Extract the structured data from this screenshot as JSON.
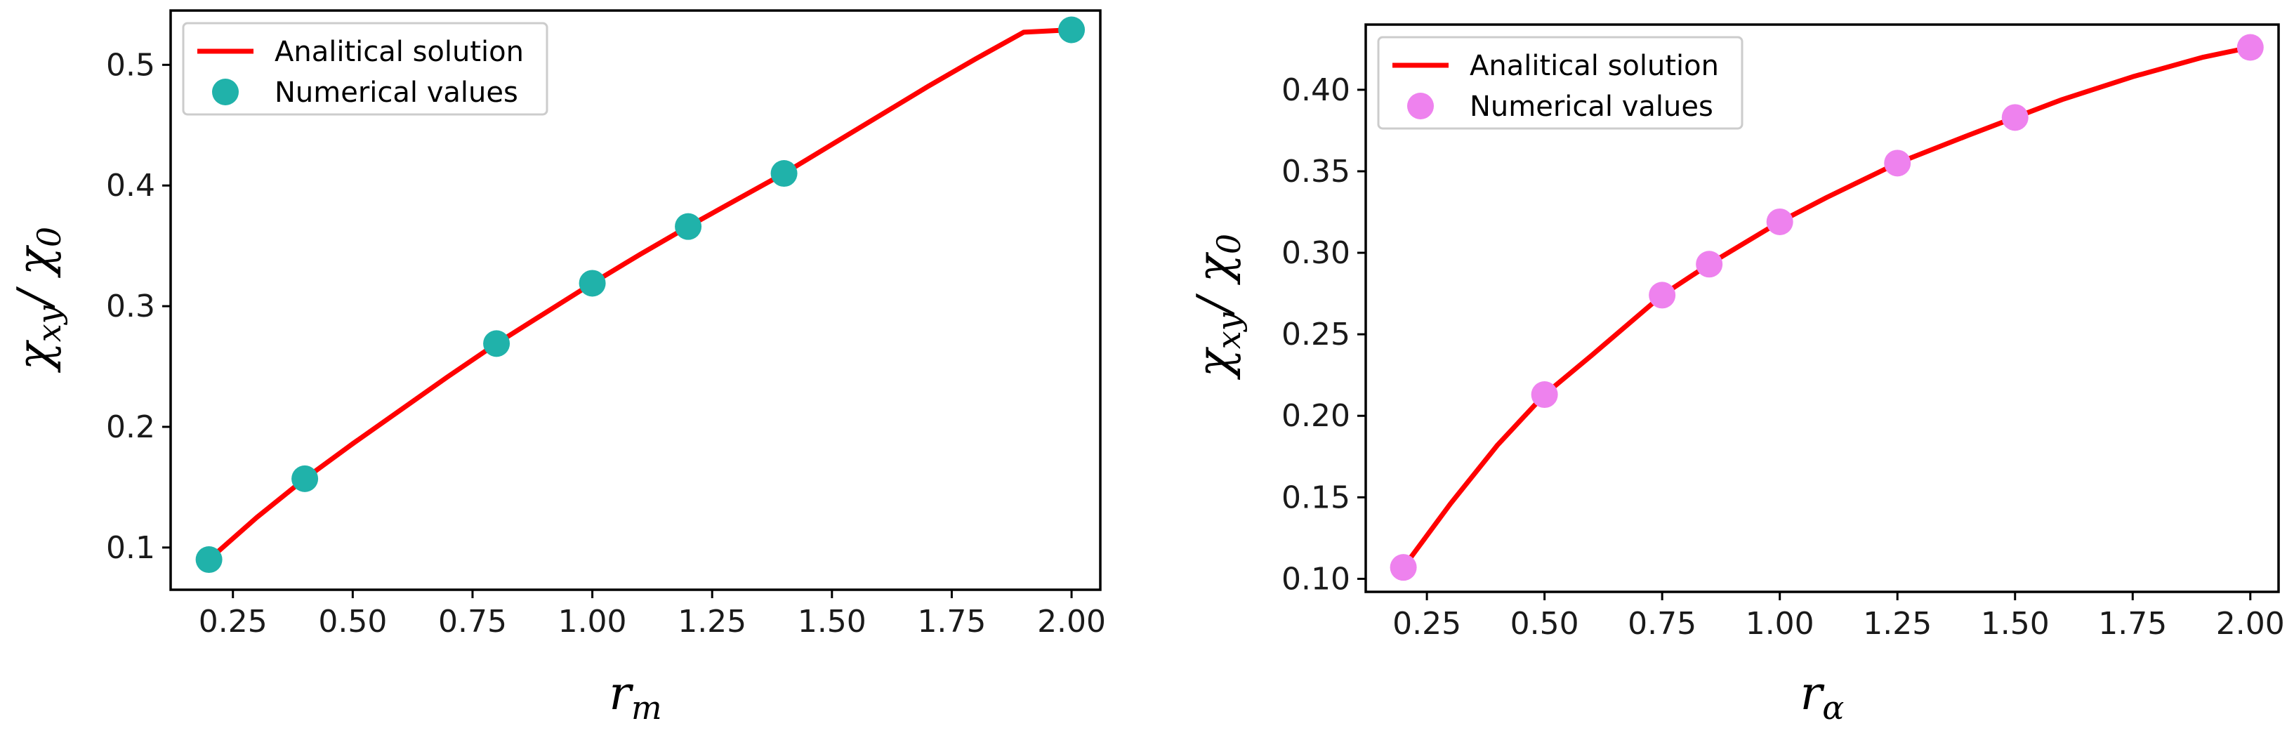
{
  "chart_data": [
    {
      "type": "line+scatter",
      "xlabel": "r_m",
      "ylabel": "χ_xy / χ_0",
      "xlim": [
        0.12,
        2.06
      ],
      "ylim": [
        0.065,
        0.545
      ],
      "xticks": [
        0.25,
        0.5,
        0.75,
        1.0,
        1.25,
        1.5,
        1.75,
        2.0
      ],
      "xtick_labels": [
        "0.25",
        "0.50",
        "0.75",
        "1.00",
        "1.25",
        "1.50",
        "1.75",
        "2.00"
      ],
      "yticks": [
        0.1,
        0.2,
        0.3,
        0.4,
        0.5
      ],
      "ytick_labels": [
        "0.1",
        "0.2",
        "0.3",
        "0.4",
        "0.5"
      ],
      "legend_position": "top-left",
      "series": [
        {
          "name": "Analitical solution",
          "kind": "line",
          "color": "#ff0000",
          "x": [
            0.2,
            0.3,
            0.4,
            0.5,
            0.6,
            0.7,
            0.8,
            0.9,
            1.0,
            1.1,
            1.2,
            1.3,
            1.4,
            1.5,
            1.6,
            1.7,
            1.8,
            1.9,
            2.0
          ],
          "y": [
            0.09,
            0.125,
            0.157,
            0.186,
            0.214,
            0.242,
            0.269,
            0.294,
            0.319,
            0.343,
            0.366,
            0.388,
            0.41,
            0.434,
            0.458,
            0.482,
            0.505,
            0.527,
            0.529
          ]
        },
        {
          "name": "Numerical values",
          "kind": "scatter",
          "color": "#20b2aa",
          "x": [
            0.2,
            0.4,
            0.8,
            1.0,
            1.2,
            1.4,
            2.0
          ],
          "y": [
            0.09,
            0.157,
            0.269,
            0.319,
            0.366,
            0.41,
            0.529
          ]
        }
      ]
    },
    {
      "type": "line+scatter",
      "xlabel": "r_α",
      "ylabel": "χ_xy / χ_0",
      "xlim": [
        0.12,
        2.06
      ],
      "ylim": [
        0.092,
        0.44
      ],
      "xticks": [
        0.25,
        0.5,
        0.75,
        1.0,
        1.25,
        1.5,
        1.75,
        2.0
      ],
      "xtick_labels": [
        "0.25",
        "0.50",
        "0.75",
        "1.00",
        "1.25",
        "1.50",
        "1.75",
        "2.00"
      ],
      "yticks": [
        0.1,
        0.15,
        0.2,
        0.25,
        0.3,
        0.35,
        0.4
      ],
      "ytick_labels": [
        "0.10",
        "0.15",
        "0.20",
        "0.25",
        "0.30",
        "0.35",
        "0.40"
      ],
      "legend_position": "top-left",
      "series": [
        {
          "name": "Analitical solution",
          "kind": "line",
          "color": "#ff0000",
          "x": [
            0.2,
            0.3,
            0.4,
            0.5,
            0.6,
            0.75,
            0.85,
            1.0,
            1.1,
            1.25,
            1.4,
            1.5,
            1.6,
            1.75,
            1.9,
            2.0
          ],
          "y": [
            0.107,
            0.146,
            0.182,
            0.213,
            0.237,
            0.274,
            0.293,
            0.319,
            0.334,
            0.355,
            0.372,
            0.383,
            0.394,
            0.408,
            0.42,
            0.426
          ]
        },
        {
          "name": "Numerical values",
          "kind": "scatter",
          "color": "#ee82ee",
          "x": [
            0.2,
            0.5,
            0.75,
            0.85,
            1.0,
            1.25,
            1.5,
            2.0
          ],
          "y": [
            0.107,
            0.213,
            0.274,
            0.293,
            0.319,
            0.355,
            0.383,
            0.426
          ]
        }
      ]
    }
  ]
}
